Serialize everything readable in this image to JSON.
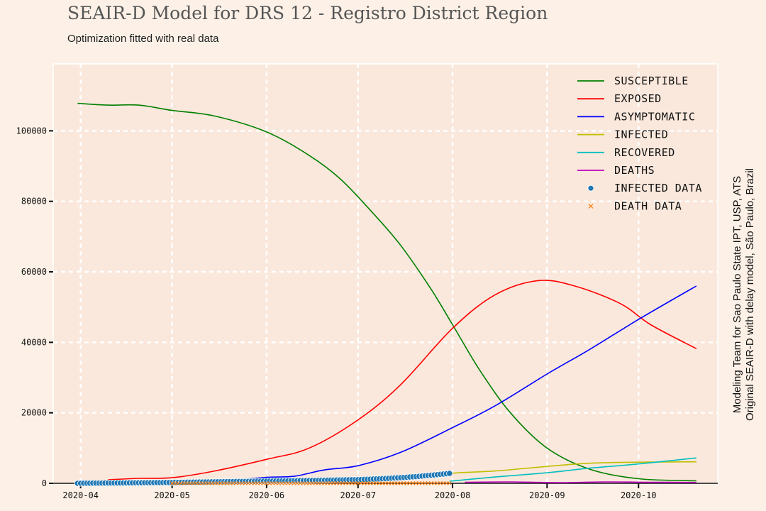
{
  "header": {
    "title": "SEAIR-D Model for DRS 12 - Registro District Region",
    "subtitle": "Optimization fitted with real data"
  },
  "side_note": {
    "line1": "Modeling Team for Sao Paulo State IPT, USP, ATS",
    "line2": "Original SEAIR-D with delay model, São Paulo, Brazil"
  },
  "chart_data": {
    "type": "line",
    "title": "SEAIR-D Model for DRS 12 - Registro District Region",
    "subtitle": "Optimization fitted with real data",
    "xlabel": "",
    "ylabel": "",
    "x_type": "date",
    "xlim": [
      "2020-03-23",
      "2020-10-27"
    ],
    "ylim": [
      0,
      119000
    ],
    "grid": true,
    "legend_position": "top-right",
    "x_tick_labels": [
      "2020-04",
      "2020-05",
      "2020-06",
      "2020-07",
      "2020-08",
      "2020-09",
      "2020-10"
    ],
    "y_ticks": [
      0,
      20000,
      40000,
      60000,
      80000,
      100000
    ],
    "series": [
      {
        "name": "susceptible",
        "color": "#008000",
        "points": [
          [
            "2020-03-31",
            107800
          ],
          [
            "2020-04-10",
            107300
          ],
          [
            "2020-04-20",
            107300
          ],
          [
            "2020-05-01",
            105800
          ],
          [
            "2020-05-15",
            104200
          ],
          [
            "2020-06-01",
            99700
          ],
          [
            "2020-06-15",
            93000
          ],
          [
            "2020-06-25",
            86500
          ],
          [
            "2020-07-05",
            77500
          ],
          [
            "2020-07-15",
            67500
          ],
          [
            "2020-07-25",
            55000
          ],
          [
            "2020-08-01",
            45000
          ],
          [
            "2020-08-10",
            32000
          ],
          [
            "2020-08-20",
            20000
          ],
          [
            "2020-09-01",
            10000
          ],
          [
            "2020-09-15",
            4000
          ],
          [
            "2020-10-01",
            1300
          ],
          [
            "2020-10-20",
            700
          ]
        ]
      },
      {
        "name": "exposed",
        "color": "#ff0000",
        "points": [
          [
            "2020-04-10",
            1000
          ],
          [
            "2020-04-20",
            1400
          ],
          [
            "2020-05-01",
            1600
          ],
          [
            "2020-05-15",
            3500
          ],
          [
            "2020-06-01",
            6800
          ],
          [
            "2020-06-15",
            10000
          ],
          [
            "2020-07-01",
            18000
          ],
          [
            "2020-07-15",
            28000
          ],
          [
            "2020-08-01",
            44000
          ],
          [
            "2020-08-15",
            53500
          ],
          [
            "2020-08-29",
            57500
          ],
          [
            "2020-09-10",
            56000
          ],
          [
            "2020-09-25",
            51000
          ],
          [
            "2020-10-05",
            45000
          ],
          [
            "2020-10-20",
            38200
          ]
        ]
      },
      {
        "name": "asymptomatic",
        "color": "#0000ff",
        "points": [
          [
            "2020-05-20",
            700
          ],
          [
            "2020-06-01",
            1700
          ],
          [
            "2020-06-10",
            2000
          ],
          [
            "2020-06-20",
            3800
          ],
          [
            "2020-07-01",
            5000
          ],
          [
            "2020-07-15",
            8800
          ],
          [
            "2020-08-01",
            15800
          ],
          [
            "2020-08-15",
            22000
          ],
          [
            "2020-09-01",
            31000
          ],
          [
            "2020-09-15",
            38000
          ],
          [
            "2020-10-01",
            46500
          ],
          [
            "2020-10-20",
            56000
          ]
        ]
      },
      {
        "name": "infected",
        "color": "#bfbf00",
        "points": [
          [
            "2020-07-20",
            1300
          ],
          [
            "2020-07-31",
            2800
          ],
          [
            "2020-08-15",
            3500
          ],
          [
            "2020-09-01",
            4800
          ],
          [
            "2020-09-15",
            5700
          ],
          [
            "2020-10-01",
            6000
          ],
          [
            "2020-10-20",
            6100
          ]
        ]
      },
      {
        "name": "recovered",
        "color": "#00bfbf",
        "points": [
          [
            "2020-07-31",
            600
          ],
          [
            "2020-08-15",
            1800
          ],
          [
            "2020-09-01",
            3000
          ],
          [
            "2020-09-15",
            4300
          ],
          [
            "2020-10-01",
            5500
          ],
          [
            "2020-10-20",
            7200
          ]
        ]
      },
      {
        "name": "deaths",
        "color": "#bf00bf",
        "points": [
          [
            "2020-08-05",
            300
          ],
          [
            "2020-08-20",
            400
          ],
          [
            "2020-09-05",
            200
          ],
          [
            "2020-09-20",
            400
          ],
          [
            "2020-10-05",
            300
          ],
          [
            "2020-10-20",
            250
          ]
        ]
      }
    ],
    "scatter_series": [
      {
        "name": "infected data",
        "color": "#1f77b4",
        "marker": "circle",
        "points": [
          [
            "2020-03-31",
            20
          ],
          [
            "2020-04-15",
            120
          ],
          [
            "2020-05-01",
            250
          ],
          [
            "2020-05-15",
            430
          ],
          [
            "2020-06-01",
            620
          ],
          [
            "2020-06-15",
            800
          ],
          [
            "2020-07-01",
            1050
          ],
          [
            "2020-07-10",
            1350
          ],
          [
            "2020-07-20",
            1900
          ],
          [
            "2020-07-25",
            2300
          ],
          [
            "2020-07-31",
            2800
          ]
        ]
      },
      {
        "name": "death data",
        "color": "#ff7f0e",
        "marker": "x",
        "points": [
          [
            "2020-05-01",
            5
          ],
          [
            "2020-06-01",
            10
          ],
          [
            "2020-07-01",
            20
          ],
          [
            "2020-07-31",
            40
          ]
        ]
      }
    ],
    "legend": [
      {
        "label": "susceptible",
        "color": "#008000",
        "marker": "line"
      },
      {
        "label": "exposed",
        "color": "#ff0000",
        "marker": "line"
      },
      {
        "label": "asymptomatic",
        "color": "#0000ff",
        "marker": "line"
      },
      {
        "label": "infected",
        "color": "#bfbf00",
        "marker": "line"
      },
      {
        "label": "recovered",
        "color": "#00bfbf",
        "marker": "line"
      },
      {
        "label": "deaths",
        "color": "#bf00bf",
        "marker": "line"
      },
      {
        "label": "infected data",
        "color": "#1f77b4",
        "marker": "dot"
      },
      {
        "label": "death data",
        "color": "#ff7f0e",
        "marker": "x"
      }
    ]
  }
}
